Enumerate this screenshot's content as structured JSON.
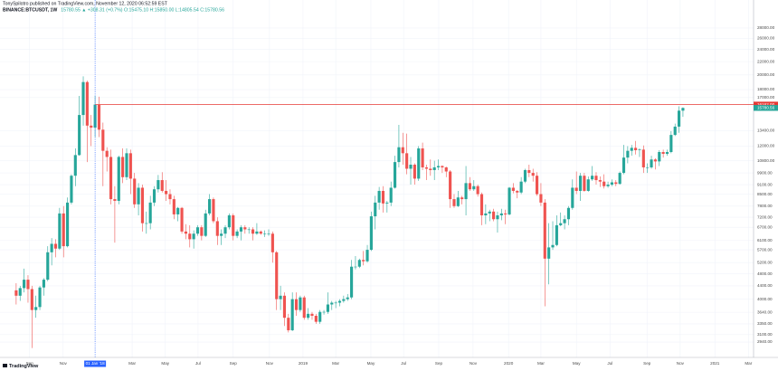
{
  "chart_data": {
    "type": "candlestick",
    "title": "TonySpilotro published on TradingView.com, November 12, 2020 06:52:59 EST",
    "symbol": "BINANCE:BTCUSDT, 1W",
    "quote": "15780.55 ▲ +308.31 (+0.7%) O:15475.10 H:15850.00 L:14805.54 C:15780.56",
    "logo": "TradingView",
    "log_scale": true,
    "grid": true,
    "up_color": "#26a69a",
    "down_color": "#ef5350",
    "xlim": [
      -4.1,
      186.9
    ],
    "ylim": [
      2633,
      34240
    ],
    "yticks": [
      {
        "value": 28000,
        "label": "28000.00"
      },
      {
        "value": 26000,
        "label": "26000.00"
      },
      {
        "value": 24000,
        "label": "24000.00"
      },
      {
        "value": 22000,
        "label": "22000.00"
      },
      {
        "value": 20000,
        "label": "20000.00"
      },
      {
        "value": 18000,
        "label": "18000.00"
      },
      {
        "value": 17000,
        "label": "17000.00"
      },
      {
        "value": 13400,
        "label": "13400.00"
      },
      {
        "value": 12000,
        "label": "12000.00"
      },
      {
        "value": 10800,
        "label": "10800.00"
      },
      {
        "value": 9900,
        "label": "9900.00"
      },
      {
        "value": 9100,
        "label": "9100.00"
      },
      {
        "value": 8500,
        "label": "8500.00"
      },
      {
        "value": 7800,
        "label": "7800.00"
      },
      {
        "value": 7200,
        "label": "7200.00"
      },
      {
        "value": 6700,
        "label": "6700.00"
      },
      {
        "value": 6100,
        "label": "6100.00"
      },
      {
        "value": 5700,
        "label": "5700.00"
      },
      {
        "value": 5200,
        "label": "5200.00"
      },
      {
        "value": 4800,
        "label": "4800.00"
      },
      {
        "value": 4400,
        "label": "4400.00"
      },
      {
        "value": 4000,
        "label": "4000.00"
      },
      {
        "value": 3640,
        "label": "3640.00"
      },
      {
        "value": 3350,
        "label": "3350.00"
      },
      {
        "value": 3100,
        "label": "3100.00"
      },
      {
        "value": 2940,
        "label": "2940.00"
      }
    ],
    "xticks": [
      {
        "value": 3.4,
        "label": "Sep"
      },
      {
        "value": 11.9,
        "label": "Nov"
      },
      {
        "value": 29.4,
        "label": "Mar"
      },
      {
        "value": 37.8,
        "label": "May"
      },
      {
        "value": 46.1,
        "label": "Jul"
      },
      {
        "value": 55,
        "label": "Sep"
      },
      {
        "value": 64.2,
        "label": "Nov"
      },
      {
        "value": 72.7,
        "label": "2019"
      },
      {
        "value": 81,
        "label": "Mar"
      },
      {
        "value": 89.9,
        "label": "May"
      },
      {
        "value": 98.2,
        "label": "Jul"
      },
      {
        "value": 107.1,
        "label": "Sep"
      },
      {
        "value": 115.8,
        "label": "Nov"
      },
      {
        "value": 124.8,
        "label": "2020"
      },
      {
        "value": 133,
        "label": "Mar"
      },
      {
        "value": 142,
        "label": "May"
      },
      {
        "value": 150.5,
        "label": "Jul"
      },
      {
        "value": 159.9,
        "label": "Sep"
      },
      {
        "value": 168.3,
        "label": "Nov"
      },
      {
        "value": 177.1,
        "label": "2021"
      },
      {
        "value": 185.6,
        "label": "Mar"
      }
    ],
    "crosshair": {
      "value": 20,
      "label": "01 Jan '18"
    },
    "hline": {
      "value": 16162,
      "label": "16162.00",
      "color": "#e53935",
      "start": 20
    },
    "ohlc": [
      [
        4261,
        4485,
        3850,
        4100
      ],
      [
        4100,
        4400,
        3950,
        4330
      ],
      [
        4330,
        4980,
        4200,
        4600
      ],
      [
        4600,
        4750,
        3900,
        4300
      ],
      [
        4300,
        4400,
        2817,
        3700
      ],
      [
        3700,
        4100,
        3500,
        3780
      ],
      [
        3780,
        4400,
        3700,
        4350
      ],
      [
        4350,
        4650,
        4100,
        4600
      ],
      [
        4600,
        5850,
        4550,
        5600
      ],
      [
        5600,
        6200,
        5100,
        5950
      ],
      [
        5950,
        6150,
        5400,
        5750
      ],
      [
        5750,
        7700,
        5700,
        7400
      ],
      [
        7400,
        7800,
        5400,
        5850
      ],
      [
        5850,
        8300,
        5800,
        8000
      ],
      [
        8000,
        9800,
        7900,
        9700
      ],
      [
        9700,
        11800,
        9000,
        11250
      ],
      [
        11250,
        17200,
        11200,
        15000
      ],
      [
        15000,
        19800,
        13900,
        19000
      ],
      [
        19000,
        19200,
        10700,
        13900
      ],
      [
        13900,
        15000,
        12000,
        13700
      ],
      [
        13700,
        17250,
        12800,
        16162
      ],
      [
        16162,
        17100,
        12800,
        13500
      ],
      [
        13500,
        14200,
        9000,
        11600
      ],
      [
        11600,
        11900,
        10000,
        11100
      ],
      [
        11100,
        11700,
        7900,
        8200
      ],
      [
        8200,
        9000,
        6000,
        8100
      ],
      [
        8100,
        11200,
        7900,
        11100
      ],
      [
        11100,
        11800,
        9200,
        9600
      ],
      [
        9600,
        11800,
        9400,
        11400
      ],
      [
        11400,
        11700,
        8500,
        9500
      ],
      [
        9500,
        9900,
        7700,
        7900
      ],
      [
        7900,
        9200,
        7300,
        8900
      ],
      [
        8900,
        9100,
        6500,
        6900
      ],
      [
        6900,
        7500,
        6400,
        6900
      ],
      [
        6900,
        8400,
        6600,
        8000
      ],
      [
        8000,
        9000,
        7800,
        8800
      ],
      [
        8800,
        9750,
        8600,
        9400
      ],
      [
        9400,
        9950,
        8600,
        8700
      ],
      [
        8700,
        9400,
        8100,
        8500
      ],
      [
        8500,
        8800,
        7900,
        8200
      ],
      [
        8200,
        8400,
        7100,
        7350
      ],
      [
        7350,
        7750,
        7000,
        7700
      ],
      [
        7700,
        7750,
        6400,
        6500
      ],
      [
        6500,
        6850,
        6150,
        6400
      ],
      [
        6400,
        6800,
        5800,
        6150
      ],
      [
        6150,
        6550,
        5750,
        6400
      ],
      [
        6400,
        6800,
        6300,
        6700
      ],
      [
        6700,
        6800,
        6100,
        6300
      ],
      [
        6300,
        7600,
        6250,
        7400
      ],
      [
        7400,
        8500,
        7300,
        8200
      ],
      [
        8200,
        8300,
        6900,
        7000
      ],
      [
        7000,
        7200,
        5900,
        6300
      ],
      [
        6300,
        6600,
        5900,
        6400
      ],
      [
        6400,
        6800,
        6200,
        6700
      ],
      [
        6700,
        7400,
        6600,
        7300
      ],
      [
        7300,
        7400,
        6100,
        6300
      ],
      [
        6300,
        6600,
        6200,
        6500
      ],
      [
        6500,
        6800,
        6100,
        6700
      ],
      [
        6700,
        6800,
        6400,
        6600
      ],
      [
        6600,
        6700,
        6400,
        6600
      ],
      [
        6600,
        6700,
        6100,
        6400
      ],
      [
        6400,
        6900,
        6350,
        6500
      ],
      [
        6500,
        6550,
        6350,
        6400
      ],
      [
        6400,
        6550,
        6250,
        6400
      ],
      [
        6400,
        6600,
        6300,
        6400
      ],
      [
        6400,
        6500,
        5200,
        5600
      ],
      [
        5600,
        5650,
        3700,
        4000
      ],
      [
        4000,
        4400,
        3700,
        4100
      ],
      [
        4100,
        4200,
        3300,
        3500
      ],
      [
        3500,
        3600,
        3150,
        3200
      ],
      [
        3200,
        4200,
        3180,
        4000
      ],
      [
        4000,
        4200,
        3550,
        3700
      ],
      [
        3700,
        4100,
        3650,
        4050
      ],
      [
        4050,
        4100,
        3450,
        3500
      ],
      [
        3500,
        3750,
        3450,
        3600
      ],
      [
        3600,
        3650,
        3450,
        3550
      ],
      [
        3550,
        3600,
        3350,
        3400
      ],
      [
        3400,
        3700,
        3350,
        3650
      ],
      [
        3650,
        3700,
        3580,
        3650
      ],
      [
        3650,
        4200,
        3600,
        3850
      ],
      [
        3850,
        3950,
        3700,
        3900
      ],
      [
        3900,
        3950,
        3750,
        3900
      ],
      [
        3900,
        4000,
        3800,
        3950
      ],
      [
        3950,
        4100,
        3900,
        4000
      ],
      [
        4000,
        4150,
        3950,
        4050
      ],
      [
        4050,
        5300,
        4000,
        5050
      ],
      [
        5050,
        5450,
        4950,
        5050
      ],
      [
        5050,
        5350,
        5000,
        5300
      ],
      [
        5300,
        5650,
        5100,
        5250
      ],
      [
        5250,
        5900,
        5200,
        5700
      ],
      [
        5700,
        7500,
        5650,
        7250
      ],
      [
        7250,
        8400,
        6600,
        8000
      ],
      [
        8000,
        8950,
        7600,
        8700
      ],
      [
        8700,
        9000,
        7450,
        7950
      ],
      [
        7950,
        8100,
        7450,
        8000
      ],
      [
        8000,
        9300,
        7800,
        8900
      ],
      [
        8900,
        11200,
        8850,
        10700
      ],
      [
        10700,
        13970,
        10300,
        11900
      ],
      [
        11900,
        13200,
        10500,
        11400
      ],
      [
        11400,
        13130,
        9800,
        10200
      ],
      [
        10200,
        11100,
        9100,
        10500
      ],
      [
        10500,
        10600,
        9100,
        9500
      ],
      [
        9500,
        12000,
        9350,
        11800
      ],
      [
        11800,
        12300,
        10100,
        10300
      ],
      [
        10300,
        10500,
        9400,
        10200
      ],
      [
        10200,
        10900,
        9700,
        10100
      ],
      [
        10100,
        10800,
        9400,
        10300
      ],
      [
        10300,
        10900,
        10100,
        10400
      ],
      [
        10400,
        10450,
        9900,
        10300
      ],
      [
        10300,
        10350,
        9600,
        10000
      ],
      [
        10000,
        10100,
        7700,
        8200
      ],
      [
        8200,
        8500,
        7700,
        7800
      ],
      [
        7800,
        8700,
        7750,
        8300
      ],
      [
        8300,
        8400,
        7900,
        8200
      ],
      [
        8200,
        10400,
        7300,
        9200
      ],
      [
        9200,
        9600,
        8700,
        8800
      ],
      [
        8800,
        9400,
        8700,
        9000
      ],
      [
        9000,
        9100,
        8350,
        8500
      ],
      [
        8500,
        8600,
        6800,
        7300
      ],
      [
        7300,
        7900,
        6850,
        7400
      ],
      [
        7400,
        7600,
        7000,
        7500
      ],
      [
        7500,
        7650,
        7000,
        7100
      ],
      [
        7100,
        7500,
        6450,
        7300
      ],
      [
        7300,
        7650,
        7050,
        7400
      ],
      [
        7400,
        7600,
        6850,
        7350
      ],
      [
        7350,
        8950,
        7300,
        8900
      ],
      [
        8900,
        9200,
        8550,
        8700
      ],
      [
        8700,
        8750,
        8250,
        8600
      ],
      [
        8600,
        9600,
        8500,
        9300
      ],
      [
        9300,
        10200,
        9200,
        10100
      ],
      [
        10100,
        10500,
        9600,
        9900
      ],
      [
        9900,
        10200,
        9300,
        9700
      ],
      [
        9700,
        9950,
        8400,
        8500
      ],
      [
        8500,
        9200,
        7800,
        8000
      ],
      [
        8000,
        8200,
        3800,
        5350
      ],
      [
        5350,
        6900,
        4450,
        5800
      ],
      [
        5800,
        7000,
        5700,
        5900
      ],
      [
        5900,
        7300,
        5850,
        6800
      ],
      [
        6800,
        7450,
        6750,
        6900
      ],
      [
        6900,
        7300,
        6600,
        7100
      ],
      [
        7100,
        7800,
        6800,
        7700
      ],
      [
        7700,
        9450,
        7600,
        8900
      ],
      [
        8900,
        10000,
        8500,
        8700
      ],
      [
        8700,
        9900,
        8100,
        9700
      ],
      [
        9700,
        9900,
        8650,
        8700
      ],
      [
        8700,
        9650,
        8650,
        9450
      ],
      [
        9450,
        10400,
        9350,
        9700
      ],
      [
        9700,
        9950,
        9100,
        9400
      ],
      [
        9400,
        9650,
        8950,
        9300
      ],
      [
        9300,
        9800,
        8850,
        9000
      ],
      [
        9000,
        9300,
        8900,
        9100
      ],
      [
        9100,
        9450,
        9000,
        9250
      ],
      [
        9250,
        9400,
        9000,
        9150
      ],
      [
        9150,
        10000,
        9100,
        9900
      ],
      [
        9900,
        12100,
        9800,
        11050
      ],
      [
        11050,
        12000,
        10600,
        11600
      ],
      [
        11600,
        12100,
        11200,
        11850
      ],
      [
        11850,
        12450,
        11300,
        11650
      ],
      [
        11650,
        11800,
        11100,
        11700
      ],
      [
        11700,
        12050,
        9900,
        10300
      ],
      [
        10300,
        10600,
        9900,
        10300
      ],
      [
        10300,
        11200,
        10200,
        10900
      ],
      [
        10900,
        11000,
        10150,
        10750
      ],
      [
        10750,
        11650,
        10400,
        11500
      ],
      [
        11500,
        11700,
        11050,
        11350
      ],
      [
        11350,
        11700,
        11200,
        11500
      ],
      [
        11500,
        13350,
        11400,
        13000
      ],
      [
        13000,
        14100,
        12900,
        13800
      ],
      [
        13800,
        15960,
        13200,
        15475.1
      ],
      [
        15475.1,
        15850,
        14805.54,
        15780.56
      ]
    ]
  }
}
